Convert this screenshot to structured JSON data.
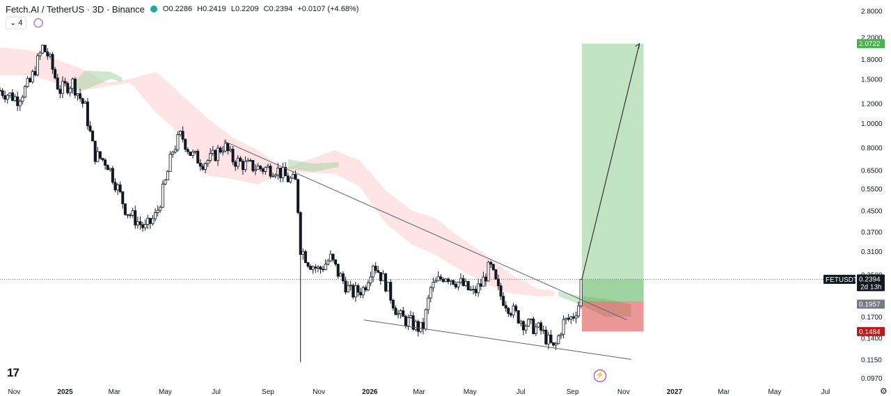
{
  "header": {
    "title": "Fetch.AI / TetherUS · 3D · Binance",
    "open": "O0.2286",
    "high": "H0.2419",
    "low": "L0.2209",
    "close": "C0.2394",
    "change": "+0.0107 (+4.68%)",
    "status_color": "#22ab94"
  },
  "controls": {
    "collapse_label": "4",
    "indicator_icon": "circle-indicator-icon"
  },
  "branding": {
    "logo_text": "17",
    "bolt_icon": "lightning-icon",
    "settings_icon": "gear-icon"
  },
  "price_axis": {
    "ticks": [
      "2.8000",
      "2.2000",
      "1.8000",
      "1.5000",
      "1.2000",
      "1.0000",
      "0.8000",
      "0.6500",
      "0.5500",
      "0.4500",
      "0.3700",
      "0.3100",
      "0.2500",
      "0.1700",
      "0.1400",
      "0.1150",
      "0.0970"
    ],
    "labels": [
      {
        "text": "FETUSDT",
        "sub": "",
        "value": 0.2394,
        "bg": "#131722"
      },
      {
        "text": "0.2394",
        "sub": "2d 13h",
        "value": 0.2394,
        "bg": "#131722"
      },
      {
        "text": "2.0722",
        "sub": "",
        "value": 2.0722,
        "bg": "#4caf50"
      },
      {
        "text": "0.1957",
        "sub": "",
        "value": 0.1957,
        "bg": "#787b86"
      },
      {
        "text": "0.1484",
        "sub": "",
        "value": 0.1484,
        "bg": "#b71c1c"
      }
    ]
  },
  "time_axis": {
    "ticks": [
      "Nov",
      "2025",
      "Mar",
      "May",
      "Jul",
      "Sep",
      "Nov",
      "2026",
      "Mar",
      "May",
      "Jul",
      "Sep",
      "Nov",
      "2027",
      "Mar",
      "May",
      "Jul"
    ],
    "bold": [
      "2025",
      "2026",
      "2027"
    ]
  },
  "chart_data": {
    "type": "candlestick",
    "symbol": "FETUSDT",
    "timeframe": "3D",
    "y_scale": "log",
    "ylim": [
      0.094,
      2.9
    ],
    "x_range": [
      "2024-10-15",
      "2027-08-05"
    ],
    "last_price": 0.2394,
    "price_path": [
      [
        "2024-10-15",
        1.35
      ],
      [
        "2024-11-05",
        1.25
      ],
      [
        "2024-11-20",
        1.45
      ],
      [
        "2024-12-05",
        2.0
      ],
      [
        "2024-12-12",
        1.85
      ],
      [
        "2024-12-25",
        1.35
      ],
      [
        "2025-01-10",
        1.45
      ],
      [
        "2025-01-25",
        1.15
      ],
      [
        "2025-02-05",
        0.75
      ],
      [
        "2025-02-20",
        0.7
      ],
      [
        "2025-03-05",
        0.55
      ],
      [
        "2025-03-15",
        0.45
      ],
      [
        "2025-04-07",
        0.38
      ],
      [
        "2025-04-20",
        0.43
      ],
      [
        "2025-05-01",
        0.58
      ],
      [
        "2025-05-10",
        0.78
      ],
      [
        "2025-05-20",
        0.9
      ],
      [
        "2025-06-01",
        0.75
      ],
      [
        "2025-06-15",
        0.7
      ],
      [
        "2025-06-25",
        0.72
      ],
      [
        "2025-07-10",
        0.82
      ],
      [
        "2025-07-20",
        0.72
      ],
      [
        "2025-08-05",
        0.68
      ],
      [
        "2025-08-25",
        0.66
      ],
      [
        "2025-09-10",
        0.66
      ],
      [
        "2025-09-25",
        0.6
      ],
      [
        "2025-10-05",
        0.58
      ],
      [
        "2025-10-10",
        0.32
      ],
      [
        "2025-10-20",
        0.28
      ],
      [
        "2025-11-01",
        0.26
      ],
      [
        "2025-11-15",
        0.29
      ],
      [
        "2025-11-25",
        0.25
      ],
      [
        "2025-12-10",
        0.21
      ],
      [
        "2025-12-25",
        0.22
      ],
      [
        "2026-01-05",
        0.28
      ],
      [
        "2026-01-20",
        0.23
      ],
      [
        "2026-02-05",
        0.17
      ],
      [
        "2026-02-20",
        0.16
      ],
      [
        "2026-03-05",
        0.15
      ],
      [
        "2026-03-15",
        0.22
      ],
      [
        "2026-04-01",
        0.25
      ],
      [
        "2026-04-20",
        0.23
      ],
      [
        "2026-05-05",
        0.21
      ],
      [
        "2026-05-15",
        0.23
      ],
      [
        "2026-05-25",
        0.27
      ],
      [
        "2026-06-05",
        0.21
      ],
      [
        "2026-06-20",
        0.18
      ],
      [
        "2026-07-05",
        0.16
      ],
      [
        "2026-07-25",
        0.15
      ],
      [
        "2026-08-10",
        0.125
      ],
      [
        "2026-08-20",
        0.16
      ],
      [
        "2026-09-01",
        0.17
      ],
      [
        "2026-09-08",
        0.19
      ],
      [
        "2026-09-12",
        0.2394
      ]
    ],
    "trendlines": [
      {
        "name": "resistance",
        "from": [
          "2025-07-10",
          0.85
        ],
        "to": [
          "2026-11-05",
          0.165
        ]
      },
      {
        "name": "support",
        "from": [
          "2025-12-25",
          0.165
        ],
        "to": [
          "2026-11-10",
          0.115
        ]
      },
      {
        "name": "projection",
        "from": [
          "2026-09-12",
          0.2394
        ],
        "to": [
          "2026-11-20",
          2.0722
        ]
      }
    ],
    "long_position": {
      "entry": 0.1957,
      "target": 2.0722,
      "stop": 0.1484,
      "start": "2026-09-12",
      "end": "2026-11-25",
      "profit_color": "#4caf50",
      "loss_color": "#d32f2f"
    },
    "cloud_bear": [
      [
        "2024-10-15",
        2.0,
        1.55
      ],
      [
        "2024-11-20",
        1.95,
        1.55
      ],
      [
        "2024-12-20",
        1.8,
        1.45
      ],
      [
        "2025-01-20",
        1.65,
        1.35
      ],
      [
        "2025-02-20",
        1.45,
        1.4
      ],
      [
        "2025-03-20",
        1.5,
        1.45
      ],
      [
        "2025-04-20",
        1.6,
        1.1
      ],
      [
        "2025-05-20",
        1.3,
        0.9
      ],
      [
        "2025-06-20",
        1.05,
        0.62
      ],
      [
        "2025-07-20",
        0.88,
        0.6
      ],
      [
        "2025-08-20",
        0.78,
        0.57
      ],
      [
        "2025-09-20",
        0.66,
        0.64
      ],
      [
        "2025-11-20",
        0.78,
        0.63
      ],
      [
        "2025-12-20",
        0.71,
        0.56
      ],
      [
        "2026-01-20",
        0.54,
        0.4
      ],
      [
        "2026-02-20",
        0.45,
        0.33
      ],
      [
        "2026-03-20",
        0.42,
        0.3
      ],
      [
        "2026-04-20",
        0.35,
        0.26
      ],
      [
        "2026-05-20",
        0.3,
        0.23
      ],
      [
        "2026-06-20",
        0.25,
        0.21
      ],
      [
        "2026-07-20",
        0.22,
        0.205
      ],
      [
        "2026-08-10",
        0.215,
        0.205
      ]
    ],
    "cloud_bull": [
      [
        "2025-01-05",
        1.38,
        1.32
      ],
      [
        "2025-01-25",
        1.62,
        1.36
      ],
      [
        "2025-02-25",
        1.6,
        1.5
      ],
      [
        "2025-03-10",
        1.52,
        1.46
      ],
      [
        "2025-09-25",
        0.72,
        0.66
      ],
      [
        "2025-10-25",
        0.69,
        0.64
      ],
      [
        "2025-11-25",
        0.7,
        0.67
      ],
      [
        "2026-08-15",
        0.215,
        0.205
      ],
      [
        "2026-09-10",
        0.205,
        0.19
      ],
      [
        "2026-10-10",
        0.2,
        0.17
      ],
      [
        "2026-11-10",
        0.19,
        0.17
      ]
    ],
    "colors": {
      "up": "#ffffff",
      "down": "#131722",
      "cloud_bull": "#a5d6a7",
      "cloud_bear": "#ffcdd2",
      "trendline": "#787b86"
    }
  }
}
